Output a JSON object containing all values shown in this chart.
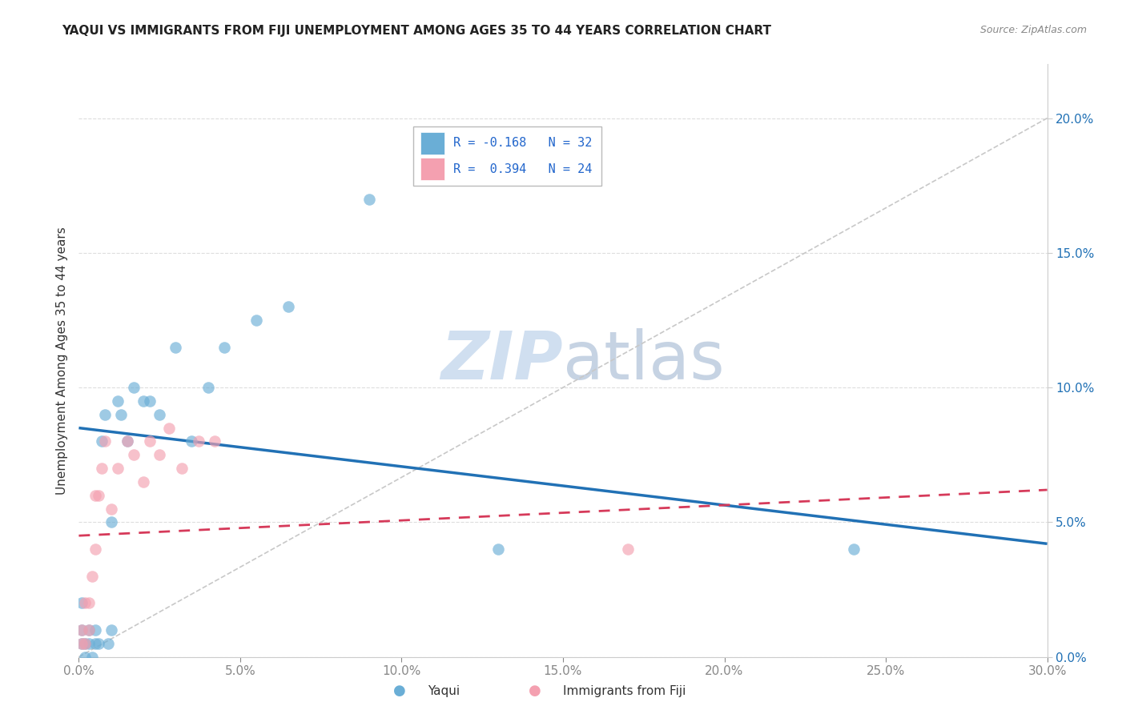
{
  "title": "YAQUI VS IMMIGRANTS FROM FIJI UNEMPLOYMENT AMONG AGES 35 TO 44 YEARS CORRELATION CHART",
  "source": "Source: ZipAtlas.com",
  "ylabel": "Unemployment Among Ages 35 to 44 years",
  "xlim": [
    0,
    0.3
  ],
  "ylim": [
    0,
    0.22
  ],
  "xticks": [
    0.0,
    0.05,
    0.1,
    0.15,
    0.2,
    0.25,
    0.3
  ],
  "yticks_right": [
    0.0,
    0.05,
    0.1,
    0.15,
    0.2
  ],
  "ytick_labels_right": [
    "0.0%",
    "5.0%",
    "10.0%",
    "15.0%",
    "20.0%"
  ],
  "xtick_labels": [
    "0.0%",
    "5.0%",
    "10.0%",
    "15.0%",
    "20.0%",
    "25.0%",
    "30.0%"
  ],
  "legend_r1": "R = -0.168",
  "legend_n1": "N = 32",
  "legend_r2": "R =  0.394",
  "legend_n2": "N = 24",
  "color_yaqui": "#6aaed6",
  "color_fiji": "#f4a0b0",
  "color_trend_yaqui": "#2171b5",
  "color_trend_fiji": "#d63a5a",
  "color_ref_line": "#c8c8c8",
  "watermark_color": "#d0dff0",
  "label_yaqui": "Yaqui",
  "label_fiji": "Immigrants from Fiji",
  "yaqui_x": [
    0.001,
    0.001,
    0.001,
    0.002,
    0.002,
    0.003,
    0.003,
    0.004,
    0.005,
    0.005,
    0.006,
    0.007,
    0.008,
    0.009,
    0.01,
    0.01,
    0.012,
    0.013,
    0.015,
    0.017,
    0.02,
    0.022,
    0.025,
    0.03,
    0.035,
    0.04,
    0.045,
    0.055,
    0.065,
    0.09,
    0.13,
    0.24
  ],
  "yaqui_y": [
    0.005,
    0.01,
    0.02,
    0.0,
    0.005,
    0.005,
    0.01,
    0.0,
    0.005,
    0.01,
    0.005,
    0.08,
    0.09,
    0.005,
    0.01,
    0.05,
    0.095,
    0.09,
    0.08,
    0.1,
    0.095,
    0.095,
    0.09,
    0.115,
    0.08,
    0.1,
    0.115,
    0.125,
    0.13,
    0.17,
    0.04,
    0.04
  ],
  "fiji_x": [
    0.001,
    0.001,
    0.002,
    0.002,
    0.003,
    0.003,
    0.004,
    0.005,
    0.005,
    0.006,
    0.007,
    0.008,
    0.01,
    0.012,
    0.015,
    0.017,
    0.02,
    0.022,
    0.025,
    0.028,
    0.032,
    0.037,
    0.042,
    0.17
  ],
  "fiji_y": [
    0.005,
    0.01,
    0.005,
    0.02,
    0.01,
    0.02,
    0.03,
    0.04,
    0.06,
    0.06,
    0.07,
    0.08,
    0.055,
    0.07,
    0.08,
    0.075,
    0.065,
    0.08,
    0.075,
    0.085,
    0.07,
    0.08,
    0.08,
    0.04
  ],
  "trend_yaqui_y0": 0.085,
  "trend_yaqui_y1": 0.042,
  "trend_fiji_y0": 0.045,
  "trend_fiji_y1": 0.062
}
